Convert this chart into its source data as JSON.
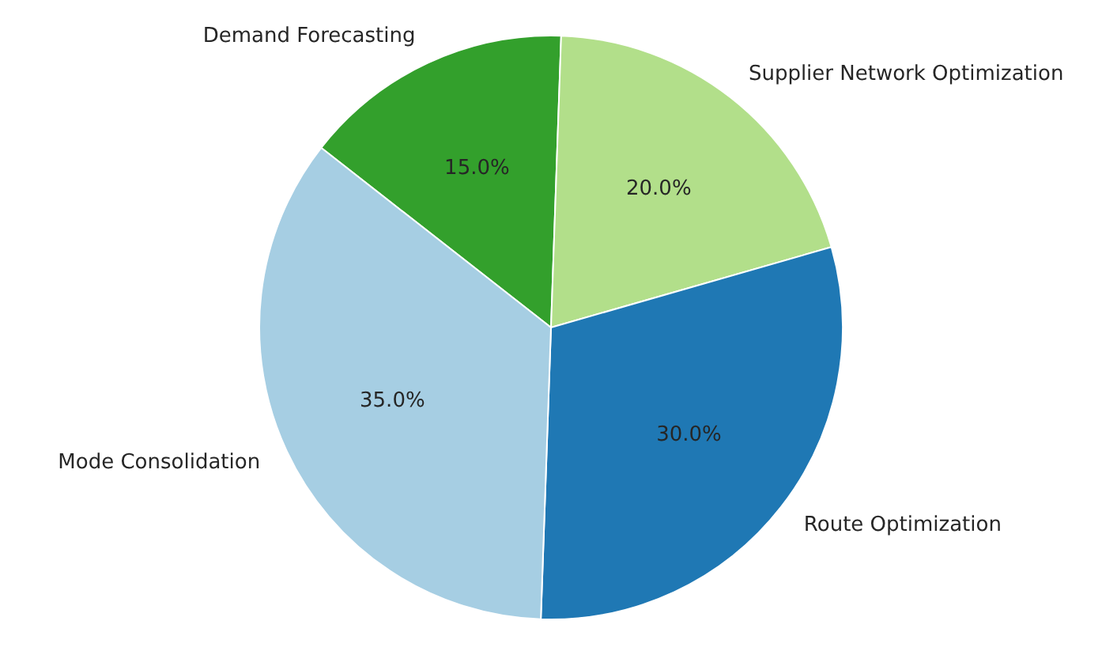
{
  "chart_data": {
    "type": "pie",
    "categories": [
      "Demand Forecasting",
      "Supplier Network Optimization",
      "Route Optimization",
      "Mode Consolidation"
    ],
    "values": [
      15,
      20,
      30,
      35
    ],
    "colors": [
      "#33a02c",
      "#b2df8a",
      "#1f78b4",
      "#a6cee3"
    ],
    "value_labels": [
      "15.0%",
      "20.0%",
      "30.0%",
      "35.0%"
    ],
    "legend": false
  }
}
